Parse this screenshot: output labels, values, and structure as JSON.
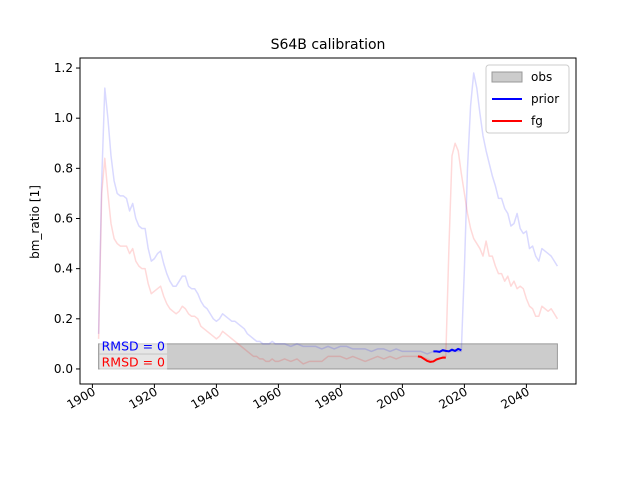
{
  "chart_data": {
    "type": "line",
    "title": "S64B calibration",
    "xlabel": "",
    "ylabel": "bm_ratio [1]",
    "xlim": [
      1896,
      2056
    ],
    "ylim": [
      -0.06,
      1.24
    ],
    "xticks": [
      1900,
      1920,
      1940,
      1960,
      1980,
      2000,
      2020,
      2040
    ],
    "yticks": [
      0.0,
      0.2,
      0.4,
      0.6,
      0.8,
      1.0,
      1.2
    ],
    "ytick_labels": [
      "0.0",
      "0.2",
      "0.4",
      "0.6",
      "0.8",
      "1.0",
      "1.2"
    ],
    "legend": {
      "position": "top-right",
      "entries": [
        {
          "label": "obs",
          "kind": "patch",
          "color": "#cccccc"
        },
        {
          "label": "prior",
          "kind": "line",
          "color": "#0000ff"
        },
        {
          "label": "fg",
          "kind": "line",
          "color": "#ff0000"
        }
      ]
    },
    "obs_band": {
      "x": [
        1902,
        2050
      ],
      "y": [
        0.0,
        0.1
      ],
      "color": "#cccccc"
    },
    "annotations": [
      {
        "text": "RMSD = 0",
        "x": 1902,
        "y": 0.09,
        "color": "#0000ff"
      },
      {
        "text": "RMSD = 0",
        "x": 1902,
        "y": 0.025,
        "color": "#ff0000"
      }
    ],
    "series": [
      {
        "name": "prior",
        "role": "faded",
        "color": "#0000ff",
        "opacity": 0.15,
        "points": [
          [
            1902,
            0.14
          ],
          [
            1903,
            0.75
          ],
          [
            1904,
            1.12
          ],
          [
            1905,
            1.0
          ],
          [
            1906,
            0.85
          ],
          [
            1907,
            0.75
          ],
          [
            1908,
            0.7
          ],
          [
            1909,
            0.69
          ],
          [
            1910,
            0.69
          ],
          [
            1911,
            0.68
          ],
          [
            1912,
            0.63
          ],
          [
            1913,
            0.66
          ],
          [
            1914,
            0.6
          ],
          [
            1915,
            0.57
          ],
          [
            1916,
            0.56
          ],
          [
            1917,
            0.56
          ],
          [
            1918,
            0.48
          ],
          [
            1919,
            0.43
          ],
          [
            1920,
            0.44
          ],
          [
            1921,
            0.46
          ],
          [
            1922,
            0.47
          ],
          [
            1923,
            0.42
          ],
          [
            1924,
            0.38
          ],
          [
            1925,
            0.35
          ],
          [
            1926,
            0.33
          ],
          [
            1927,
            0.33
          ],
          [
            1928,
            0.35
          ],
          [
            1929,
            0.37
          ],
          [
            1930,
            0.37
          ],
          [
            1931,
            0.33
          ],
          [
            1932,
            0.32
          ],
          [
            1933,
            0.32
          ],
          [
            1934,
            0.3
          ],
          [
            1935,
            0.27
          ],
          [
            1936,
            0.25
          ],
          [
            1937,
            0.24
          ],
          [
            1938,
            0.22
          ],
          [
            1939,
            0.2
          ],
          [
            1940,
            0.19
          ],
          [
            1941,
            0.2
          ],
          [
            1942,
            0.22
          ],
          [
            1943,
            0.21
          ],
          [
            1944,
            0.2
          ],
          [
            1945,
            0.19
          ],
          [
            1946,
            0.19
          ],
          [
            1947,
            0.18
          ],
          [
            1948,
            0.17
          ],
          [
            1949,
            0.16
          ],
          [
            1950,
            0.14
          ],
          [
            1951,
            0.13
          ],
          [
            1952,
            0.12
          ],
          [
            1953,
            0.11
          ],
          [
            1954,
            0.11
          ],
          [
            1955,
            0.1
          ],
          [
            1956,
            0.1
          ],
          [
            1957,
            0.1
          ],
          [
            1958,
            0.11
          ],
          [
            1959,
            0.1
          ],
          [
            1960,
            0.1
          ],
          [
            1962,
            0.1
          ],
          [
            1964,
            0.09
          ],
          [
            1966,
            0.1
          ],
          [
            1968,
            0.09
          ],
          [
            1970,
            0.09
          ],
          [
            1972,
            0.09
          ],
          [
            1974,
            0.08
          ],
          [
            1976,
            0.09
          ],
          [
            1978,
            0.08
          ],
          [
            1980,
            0.09
          ],
          [
            1982,
            0.09
          ],
          [
            1984,
            0.08
          ],
          [
            1986,
            0.08
          ],
          [
            1988,
            0.08
          ],
          [
            1990,
            0.07
          ],
          [
            1992,
            0.08
          ],
          [
            1994,
            0.08
          ],
          [
            1996,
            0.07
          ],
          [
            1998,
            0.08
          ],
          [
            2000,
            0.07
          ],
          [
            2002,
            0.07
          ],
          [
            2004,
            0.07
          ],
          [
            2006,
            0.07
          ],
          [
            2008,
            0.06
          ],
          [
            2010,
            0.07
          ],
          [
            2012,
            0.07
          ],
          [
            2014,
            0.07
          ],
          [
            2016,
            0.07
          ],
          [
            2018,
            0.07
          ],
          [
            2019,
            0.07
          ],
          [
            2020,
            0.4
          ],
          [
            2021,
            0.8
          ],
          [
            2022,
            1.05
          ],
          [
            2023,
            1.18
          ],
          [
            2024,
            1.12
          ],
          [
            2025,
            1.02
          ],
          [
            2026,
            0.93
          ],
          [
            2027,
            0.87
          ],
          [
            2028,
            0.82
          ],
          [
            2029,
            0.77
          ],
          [
            2030,
            0.73
          ],
          [
            2031,
            0.68
          ],
          [
            2032,
            0.68
          ],
          [
            2033,
            0.64
          ],
          [
            2034,
            0.62
          ],
          [
            2035,
            0.57
          ],
          [
            2036,
            0.58
          ],
          [
            2037,
            0.62
          ],
          [
            2038,
            0.56
          ],
          [
            2039,
            0.54
          ],
          [
            2040,
            0.55
          ],
          [
            2041,
            0.48
          ],
          [
            2042,
            0.49
          ],
          [
            2043,
            0.45
          ],
          [
            2044,
            0.43
          ],
          [
            2045,
            0.48
          ],
          [
            2046,
            0.47
          ],
          [
            2047,
            0.46
          ],
          [
            2048,
            0.45
          ],
          [
            2049,
            0.43
          ],
          [
            2050,
            0.41
          ]
        ]
      },
      {
        "name": "fg",
        "role": "faded",
        "color": "#ff0000",
        "opacity": 0.15,
        "points": [
          [
            1902,
            0.12
          ],
          [
            1903,
            0.7
          ],
          [
            1904,
            0.84
          ],
          [
            1905,
            0.7
          ],
          [
            1906,
            0.58
          ],
          [
            1907,
            0.52
          ],
          [
            1908,
            0.5
          ],
          [
            1909,
            0.49
          ],
          [
            1910,
            0.49
          ],
          [
            1911,
            0.49
          ],
          [
            1912,
            0.46
          ],
          [
            1913,
            0.48
          ],
          [
            1914,
            0.43
          ],
          [
            1915,
            0.41
          ],
          [
            1916,
            0.4
          ],
          [
            1917,
            0.4
          ],
          [
            1918,
            0.34
          ],
          [
            1919,
            0.3
          ],
          [
            1920,
            0.31
          ],
          [
            1921,
            0.32
          ],
          [
            1922,
            0.33
          ],
          [
            1923,
            0.29
          ],
          [
            1924,
            0.26
          ],
          [
            1925,
            0.24
          ],
          [
            1926,
            0.23
          ],
          [
            1927,
            0.22
          ],
          [
            1928,
            0.23
          ],
          [
            1929,
            0.25
          ],
          [
            1930,
            0.24
          ],
          [
            1931,
            0.22
          ],
          [
            1932,
            0.21
          ],
          [
            1933,
            0.21
          ],
          [
            1934,
            0.2
          ],
          [
            1935,
            0.17
          ],
          [
            1936,
            0.16
          ],
          [
            1937,
            0.15
          ],
          [
            1938,
            0.14
          ],
          [
            1939,
            0.13
          ],
          [
            1940,
            0.12
          ],
          [
            1941,
            0.13
          ],
          [
            1942,
            0.15
          ],
          [
            1943,
            0.14
          ],
          [
            1944,
            0.13
          ],
          [
            1945,
            0.12
          ],
          [
            1946,
            0.11
          ],
          [
            1947,
            0.1
          ],
          [
            1948,
            0.09
          ],
          [
            1949,
            0.08
          ],
          [
            1950,
            0.07
          ],
          [
            1951,
            0.06
          ],
          [
            1952,
            0.05
          ],
          [
            1953,
            0.05
          ],
          [
            1954,
            0.04
          ],
          [
            1955,
            0.04
          ],
          [
            1956,
            0.03
          ],
          [
            1957,
            0.03
          ],
          [
            1958,
            0.04
          ],
          [
            1959,
            0.03
          ],
          [
            1960,
            0.03
          ],
          [
            1962,
            0.04
          ],
          [
            1964,
            0.03
          ],
          [
            1966,
            0.04
          ],
          [
            1968,
            0.02
          ],
          [
            1970,
            0.03
          ],
          [
            1972,
            0.03
          ],
          [
            1974,
            0.03
          ],
          [
            1976,
            0.05
          ],
          [
            1978,
            0.05
          ],
          [
            1980,
            0.05
          ],
          [
            1982,
            0.04
          ],
          [
            1984,
            0.05
          ],
          [
            1986,
            0.04
          ],
          [
            1988,
            0.03
          ],
          [
            1990,
            0.04
          ],
          [
            1992,
            0.05
          ],
          [
            1994,
            0.04
          ],
          [
            1996,
            0.05
          ],
          [
            1998,
            0.04
          ],
          [
            2000,
            0.05
          ],
          [
            2002,
            0.05
          ],
          [
            2004,
            0.05
          ],
          [
            2006,
            0.05
          ],
          [
            2008,
            0.04
          ],
          [
            2010,
            0.03
          ],
          [
            2012,
            0.04
          ],
          [
            2013,
            0.05
          ],
          [
            2014,
            0.05
          ],
          [
            2015,
            0.48
          ],
          [
            2016,
            0.85
          ],
          [
            2017,
            0.9
          ],
          [
            2018,
            0.87
          ],
          [
            2019,
            0.78
          ],
          [
            2020,
            0.7
          ],
          [
            2021,
            0.62
          ],
          [
            2022,
            0.56
          ],
          [
            2023,
            0.52
          ],
          [
            2024,
            0.5
          ],
          [
            2025,
            0.48
          ],
          [
            2026,
            0.45
          ],
          [
            2027,
            0.51
          ],
          [
            2028,
            0.45
          ],
          [
            2029,
            0.45
          ],
          [
            2030,
            0.41
          ],
          [
            2031,
            0.38
          ],
          [
            2032,
            0.38
          ],
          [
            2033,
            0.35
          ],
          [
            2034,
            0.37
          ],
          [
            2035,
            0.33
          ],
          [
            2036,
            0.35
          ],
          [
            2037,
            0.32
          ],
          [
            2038,
            0.33
          ],
          [
            2039,
            0.32
          ],
          [
            2040,
            0.28
          ],
          [
            2041,
            0.25
          ],
          [
            2042,
            0.24
          ],
          [
            2043,
            0.21
          ],
          [
            2044,
            0.21
          ],
          [
            2045,
            0.25
          ],
          [
            2046,
            0.24
          ],
          [
            2047,
            0.23
          ],
          [
            2048,
            0.24
          ],
          [
            2049,
            0.22
          ],
          [
            2050,
            0.2
          ]
        ]
      },
      {
        "name": "prior",
        "role": "highlight",
        "color": "#0000ff",
        "opacity": 1,
        "points": [
          [
            2010,
            0.07
          ],
          [
            2011,
            0.07
          ],
          [
            2012,
            0.068
          ],
          [
            2013,
            0.075
          ],
          [
            2014,
            0.072
          ],
          [
            2015,
            0.07
          ],
          [
            2016,
            0.077
          ],
          [
            2017,
            0.072
          ],
          [
            2018,
            0.08
          ],
          [
            2019,
            0.075
          ]
        ]
      },
      {
        "name": "fg",
        "role": "highlight",
        "color": "#ff0000",
        "opacity": 1,
        "points": [
          [
            2005,
            0.05
          ],
          [
            2006,
            0.048
          ],
          [
            2007,
            0.04
          ],
          [
            2008,
            0.032
          ],
          [
            2009,
            0.028
          ],
          [
            2010,
            0.03
          ],
          [
            2011,
            0.038
          ],
          [
            2012,
            0.042
          ],
          [
            2013,
            0.045
          ],
          [
            2014,
            0.045
          ]
        ]
      }
    ]
  }
}
